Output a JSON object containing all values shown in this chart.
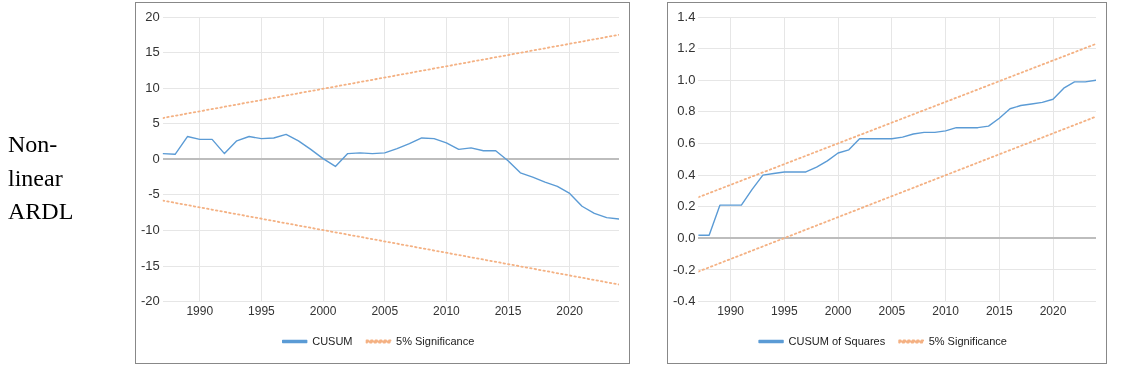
{
  "chart_data": [
    {
      "type": "line",
      "annotations": [
        "Non-linear ARDL"
      ],
      "x": [
        1987,
        1988,
        1989,
        1990,
        1991,
        1992,
        1993,
        1994,
        1995,
        1996,
        1997,
        1998,
        1999,
        2000,
        2001,
        2002,
        2003,
        2004,
        2005,
        2006,
        2007,
        2008,
        2009,
        2010,
        2011,
        2012,
        2013,
        2014,
        2015,
        2016,
        2017,
        2018,
        2019,
        2020,
        2021,
        2022,
        2023,
        2024
      ],
      "series": [
        {
          "name": "CUSUM",
          "color": "#5b9bd5",
          "values": [
            0.8,
            0.7,
            3.2,
            2.8,
            2.8,
            0.8,
            2.6,
            3.2,
            2.9,
            3.0,
            3.5,
            2.6,
            1.4,
            0.1,
            -1.0,
            0.8,
            0.9,
            0.8,
            0.9,
            1.5,
            2.2,
            3.0,
            2.9,
            2.3,
            1.4,
            1.6,
            1.2,
            1.2,
            -0.2,
            -1.9,
            -2.5,
            -3.2,
            -3.8,
            -4.8,
            -6.6,
            -7.6,
            -8.2,
            -8.4
          ]
        },
        {
          "name": "5% Significance",
          "color": "#f4b183",
          "line_style": "dotted",
          "values": [
            5.8,
            null,
            null,
            null,
            null,
            null,
            null,
            null,
            null,
            null,
            null,
            null,
            null,
            null,
            null,
            null,
            null,
            null,
            null,
            null,
            null,
            null,
            null,
            null,
            null,
            null,
            null,
            null,
            null,
            null,
            null,
            null,
            null,
            null,
            null,
            null,
            null,
            17.5
          ]
        },
        {
          "color": "#f4b183",
          "line_style": "dotted",
          "values": [
            -5.8,
            null,
            null,
            null,
            null,
            null,
            null,
            null,
            null,
            null,
            null,
            null,
            null,
            null,
            null,
            null,
            null,
            null,
            null,
            null,
            null,
            null,
            null,
            null,
            null,
            null,
            null,
            null,
            null,
            null,
            null,
            null,
            null,
            null,
            null,
            null,
            null,
            -17.6
          ]
        }
      ],
      "xlim": [
        1987,
        2024
      ],
      "xticks": [
        1990,
        1995,
        2000,
        2005,
        2010,
        2015,
        2020
      ],
      "ylim": [
        -20,
        20
      ],
      "yticks": [
        -20,
        -15,
        -10,
        -5,
        0,
        5,
        10,
        15,
        20
      ],
      "grid": true,
      "legend": "bottom"
    },
    {
      "type": "line",
      "x": [
        1987,
        1988,
        1989,
        1990,
        1991,
        1992,
        1993,
        1994,
        1995,
        1996,
        1997,
        1998,
        1999,
        2000,
        2001,
        2002,
        2003,
        2004,
        2005,
        2006,
        2007,
        2008,
        2009,
        2010,
        2011,
        2012,
        2013,
        2014,
        2015,
        2016,
        2017,
        2018,
        2019,
        2020,
        2021,
        2022,
        2023,
        2024
      ],
      "series": [
        {
          "name": "CUSUM of Squares",
          "color": "#5b9bd5",
          "values": [
            0.02,
            0.02,
            0.21,
            0.21,
            0.21,
            0.31,
            0.4,
            0.41,
            0.42,
            0.42,
            0.42,
            0.45,
            0.49,
            0.54,
            0.56,
            0.63,
            0.63,
            0.63,
            0.63,
            0.64,
            0.66,
            0.67,
            0.67,
            0.68,
            0.7,
            0.7,
            0.7,
            0.71,
            0.76,
            0.82,
            0.84,
            0.85,
            0.86,
            0.88,
            0.95,
            0.99,
            0.99,
            1.0
          ]
        },
        {
          "name": "5% Significance",
          "color": "#f4b183",
          "line_style": "dotted",
          "values": [
            0.26,
            null,
            null,
            null,
            null,
            null,
            null,
            null,
            null,
            null,
            null,
            null,
            null,
            null,
            null,
            null,
            null,
            null,
            null,
            null,
            null,
            null,
            null,
            null,
            null,
            null,
            null,
            null,
            null,
            null,
            null,
            null,
            null,
            null,
            null,
            null,
            null,
            1.23
          ]
        },
        {
          "color": "#f4b183",
          "line_style": "dotted",
          "values": [
            -0.21,
            null,
            null,
            null,
            null,
            null,
            null,
            null,
            null,
            null,
            null,
            null,
            null,
            null,
            null,
            null,
            null,
            null,
            null,
            null,
            null,
            null,
            null,
            null,
            null,
            null,
            null,
            null,
            null,
            null,
            null,
            null,
            null,
            null,
            null,
            null,
            null,
            0.77
          ]
        }
      ],
      "xlim": [
        1987,
        2024
      ],
      "xticks": [
        1990,
        1995,
        2000,
        2005,
        2010,
        2015,
        2020
      ],
      "ylim": [
        -0.4,
        1.4
      ],
      "yticks": [
        -0.4,
        -0.2,
        {
          "value": 0,
          "label": "0.0"
        },
        0.2,
        0.4,
        0.6,
        0.8,
        {
          "value": 1,
          "label": "1.0"
        },
        1.2,
        1.4
      ],
      "grid": true,
      "legend": "bottom"
    }
  ]
}
